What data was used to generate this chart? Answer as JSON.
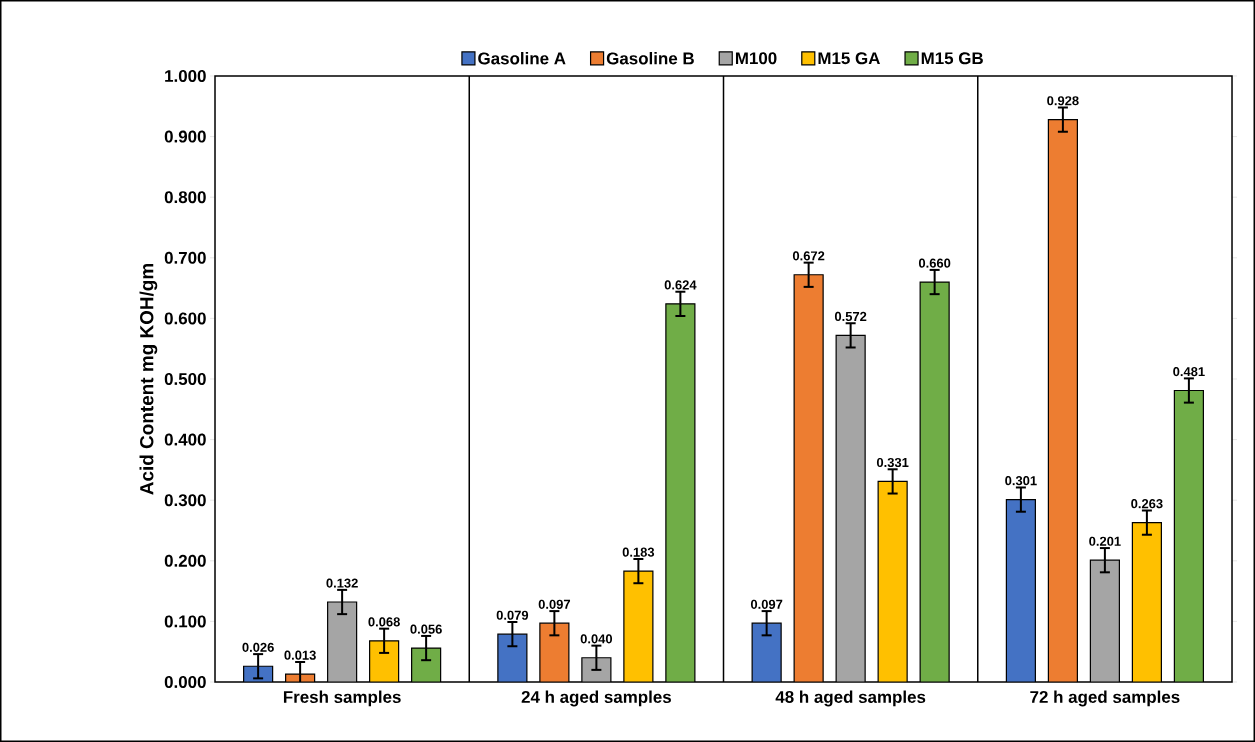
{
  "chart_data": {
    "type": "bar",
    "ylabel": "Acid Content mg KOH/gm",
    "categories": [
      "Fresh samples",
      "24 h aged samples",
      "48 h aged samples",
      "72 h aged samples"
    ],
    "series": [
      {
        "name": "Gasoline A",
        "color": "#4472c4",
        "values": [
          0.026,
          0.079,
          0.097,
          0.301
        ],
        "errors": [
          0.02,
          0.02,
          0.02,
          0.02
        ],
        "value_labels": [
          "0.026",
          "0.079",
          "0.097",
          "0.301"
        ]
      },
      {
        "name": "Gasoline B",
        "color": "#ed7d31",
        "values": [
          0.013,
          0.097,
          0.672,
          0.928
        ],
        "errors": [
          0.02,
          0.02,
          0.02,
          0.02
        ],
        "value_labels": [
          "0.013",
          "0.097",
          "0.672",
          "0.928"
        ]
      },
      {
        "name": "M100",
        "color": "#a5a5a5",
        "values": [
          0.132,
          0.04,
          0.572,
          0.201
        ],
        "errors": [
          0.02,
          0.02,
          0.02,
          0.02
        ],
        "value_labels": [
          "0.132",
          "0.040",
          "0.572",
          "0.201"
        ]
      },
      {
        "name": "M15 GA",
        "color": "#ffc000",
        "values": [
          0.068,
          0.183,
          0.331,
          0.263
        ],
        "errors": [
          0.02,
          0.02,
          0.02,
          0.02
        ],
        "value_labels": [
          "0.068",
          "0.183",
          "0.331",
          "0.263"
        ]
      },
      {
        "name": "M15 GB",
        "color": "#70ad47",
        "values": [
          0.056,
          0.624,
          0.66,
          0.481
        ],
        "errors": [
          0.02,
          0.02,
          0.02,
          0.02
        ],
        "value_labels": [
          "0.056",
          "0.624",
          "0.660",
          "0.481"
        ]
      }
    ],
    "ylim": [
      0,
      1.0
    ],
    "yticks": [
      {
        "value": 0,
        "label": "0.000"
      },
      {
        "value": 0.1,
        "label": "0.100"
      },
      {
        "value": 0.2,
        "label": "0.200"
      },
      {
        "value": 0.3,
        "label": "0.300"
      },
      {
        "value": 0.4,
        "label": "0.400"
      },
      {
        "value": 0.5,
        "label": "0.500"
      },
      {
        "value": 0.6,
        "label": "0.600"
      },
      {
        "value": 0.7,
        "label": "0.700"
      },
      {
        "value": 0.8,
        "label": "0.800"
      },
      {
        "value": 0.9,
        "label": "0.900"
      },
      {
        "value": 1.0,
        "label": "1.000"
      }
    ],
    "grid": "x",
    "legend": "top"
  }
}
